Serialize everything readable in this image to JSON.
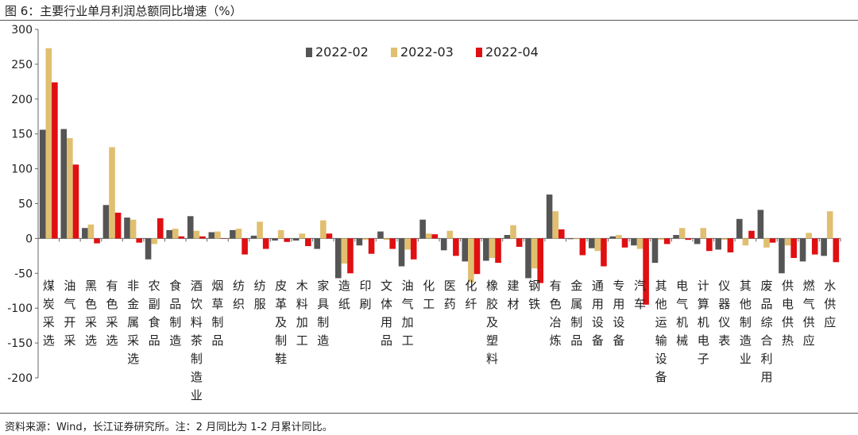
{
  "header": {
    "title": "图 6：主要行业单月利润总额同比增速（%）"
  },
  "footer": {
    "source": "资料来源：Wind，长江证券研究所。注：2 月同比为 1-2 月累计同比。"
  },
  "colors": {
    "2022-02": "#555555",
    "2022-03": "#E0BF70",
    "2022-04": "#E00F12"
  },
  "chart_data": {
    "type": "bar",
    "ylim": [
      -200,
      300
    ],
    "yticks": [
      -200,
      -150,
      -100,
      -50,
      0,
      50,
      100,
      150,
      200,
      250,
      300
    ],
    "grid": false,
    "legend_position": "top-center",
    "categories": [
      "煤炭采选",
      "油气开采",
      "黑色采选",
      "有色采选",
      "非金属采选",
      "农副食品",
      "食品制造",
      "酒饮料茶制造业",
      "烟草制品",
      "纺织",
      "纺服",
      "皮革及制鞋",
      "木料加工",
      "家具制造",
      "造纸",
      "印刷",
      "文体用品",
      "油气加工",
      "化工",
      "医药",
      "化纤",
      "橡胶及塑料",
      "建材",
      "钢铁",
      "有色冶炼",
      "金属制品",
      "通用设备",
      "专用设备",
      "汽车",
      "其他运输设备",
      "电气机械",
      "计算机电子",
      "仪器仪表",
      "其他制造业",
      "废品综合利用",
      "供电供热",
      "燃气供应",
      "水供应"
    ],
    "series": [
      {
        "name": "2022-02",
        "values": [
          156,
          157,
          15,
          48,
          30,
          -30,
          12,
          32,
          9,
          12,
          4,
          -3,
          -3,
          -15,
          -57,
          -10,
          10,
          -40,
          27,
          -17,
          -33,
          -32,
          5,
          -57,
          63,
          -1,
          -14,
          3,
          -10,
          -35,
          5,
          -8,
          -16,
          28,
          41,
          -50,
          -33,
          -25
        ]
      },
      {
        "name": "2022-03",
        "values": [
          273,
          144,
          20,
          131,
          27,
          -8,
          14,
          11,
          10,
          14,
          24,
          12,
          7,
          26,
          -36,
          -2,
          -2,
          -16,
          7,
          11,
          -63,
          -28,
          19,
          -43,
          39,
          -1,
          -18,
          5,
          -15,
          -2,
          15,
          15,
          -2,
          -10,
          -13,
          -10,
          8,
          39
        ]
      },
      {
        "name": "2022-04",
        "values": [
          224,
          106,
          -7,
          37,
          -6,
          29,
          3,
          3,
          0,
          -23,
          -15,
          -5,
          -11,
          7,
          -50,
          -22,
          -15,
          -30,
          6,
          -25,
          -51,
          -35,
          -12,
          -64,
          13,
          -24,
          -40,
          -13,
          -95,
          -8,
          -2,
          -18,
          -20,
          11,
          -6,
          -28,
          -23,
          -34
        ]
      }
    ]
  }
}
